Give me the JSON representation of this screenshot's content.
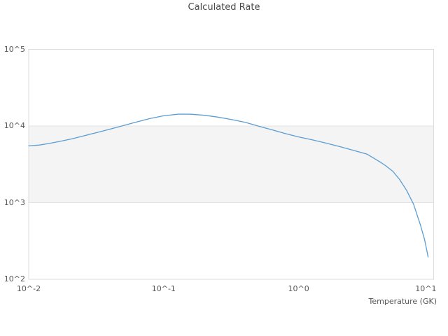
{
  "title": "Calculated Rate",
  "x_axis_title": "Temperature (GK)",
  "colors": {
    "line": "#5b9dd4",
    "band": "#f4f4f4",
    "grid": "#e3e3e3",
    "border": "#dcdcdc",
    "title_text": "#4a4a4a",
    "axis_text": "#555555",
    "background": "#ffffff"
  },
  "chart_data": {
    "type": "line",
    "title": "Calculated Rate",
    "xlabel": "Temperature (GK)",
    "ylabel": "",
    "x_scale": "log",
    "y_scale": "log",
    "xlim": [
      0.01,
      10
    ],
    "ylim": [
      100,
      100000
    ],
    "grid": "alternating horizontal decade band between 10^3 and 10^4, no vertical gridlines",
    "legend_position": "none",
    "bands_y": [
      [
        1000,
        10000
      ]
    ],
    "x_ticks": [
      {
        "value": 0.01,
        "label": "10^-2"
      },
      {
        "value": 0.1,
        "label": "10^-1"
      },
      {
        "value": 1,
        "label": "10^0"
      },
      {
        "value": 10,
        "label": "10^1"
      }
    ],
    "y_ticks": [
      {
        "value": 100,
        "label": "10^2"
      },
      {
        "value": 1000,
        "label": "10^3"
      },
      {
        "value": 10000,
        "label": "10^4"
      },
      {
        "value": 100000,
        "label": "10^5"
      }
    ],
    "series": [
      {
        "name": "Calculated Rate",
        "color": "#5b9dd4",
        "points": [
          [
            0.01,
            5500
          ],
          [
            0.012,
            5650
          ],
          [
            0.014,
            5900
          ],
          [
            0.017,
            6300
          ],
          [
            0.021,
            6800
          ],
          [
            0.026,
            7500
          ],
          [
            0.032,
            8200
          ],
          [
            0.04,
            9100
          ],
          [
            0.05,
            10100
          ],
          [
            0.063,
            11300
          ],
          [
            0.079,
            12500
          ],
          [
            0.1,
            13600
          ],
          [
            0.13,
            14300
          ],
          [
            0.16,
            14250
          ],
          [
            0.2,
            13800
          ],
          [
            0.25,
            13100
          ],
          [
            0.32,
            12100
          ],
          [
            0.4,
            11200
          ],
          [
            0.5,
            10000
          ],
          [
            0.63,
            8950
          ],
          [
            0.79,
            8000
          ],
          [
            1.0,
            7200
          ],
          [
            1.26,
            6600
          ],
          [
            1.58,
            6000
          ],
          [
            2.0,
            5400
          ],
          [
            2.5,
            4850
          ],
          [
            3.2,
            4300
          ],
          [
            4.0,
            3400
          ],
          [
            4.4,
            3050
          ],
          [
            5.0,
            2550
          ],
          [
            5.6,
            2000
          ],
          [
            6.3,
            1450
          ],
          [
            7.1,
            955
          ],
          [
            8.0,
            505
          ],
          [
            8.6,
            320
          ],
          [
            9.1,
            196
          ]
        ]
      }
    ]
  }
}
